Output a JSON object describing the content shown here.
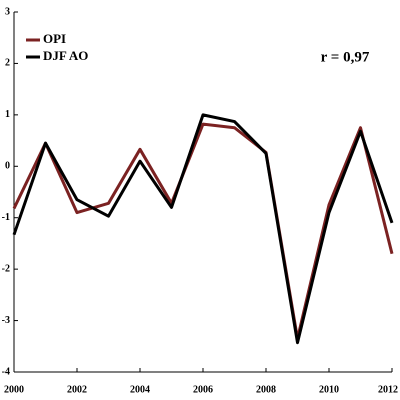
{
  "chart_data": {
    "type": "line",
    "annotation": "r = 0,97",
    "x": [
      2000,
      2001,
      2002,
      2003,
      2004,
      2005,
      2006,
      2007,
      2008,
      2009,
      2010,
      2011,
      2012
    ],
    "series": [
      {
        "name": "OPI",
        "color": "#7b2222",
        "values": [
          -0.82,
          0.45,
          -0.9,
          -0.72,
          0.33,
          -0.72,
          0.82,
          0.75,
          0.27,
          -3.35,
          -0.75,
          0.75,
          -1.7
        ]
      },
      {
        "name": "DJF AO",
        "color": "#000000",
        "values": [
          -1.33,
          0.45,
          -0.65,
          -0.97,
          0.1,
          -0.8,
          1.0,
          0.87,
          0.25,
          -3.43,
          -0.9,
          0.68,
          -1.1
        ]
      }
    ],
    "xlim": [
      2000,
      2012
    ],
    "xticks": [
      2000,
      2002,
      2004,
      2006,
      2008,
      2010,
      2012
    ],
    "ylim": [
      -4,
      3
    ],
    "yticks": [
      -4,
      -3,
      -2,
      -1,
      0,
      1,
      2,
      3
    ],
    "legend": "upper left"
  }
}
